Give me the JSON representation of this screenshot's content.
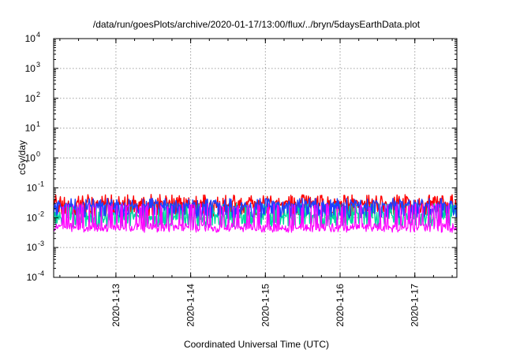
{
  "chart_data": {
    "type": "line",
    "title": "/data/run/goesPlots/archive/2020-01-17/13:00/flux/../bryn/5daysEarthData.plot",
    "xlabel": "Coordinated Universal Time (UTC)",
    "ylabel": "cGy/day",
    "y_scale": "log",
    "ylim": [
      0.0001,
      10000
    ],
    "y_ticks": [
      {
        "value": 0.0001,
        "base": "10",
        "exp": "-4"
      },
      {
        "value": 0.001,
        "base": "10",
        "exp": "-3"
      },
      {
        "value": 0.01,
        "base": "10",
        "exp": "-2"
      },
      {
        "value": 0.1,
        "base": "10",
        "exp": "-1"
      },
      {
        "value": 1,
        "base": "10",
        "exp": "0"
      },
      {
        "value": 10,
        "base": "10",
        "exp": "1"
      },
      {
        "value": 100,
        "base": "10",
        "exp": "2"
      },
      {
        "value": 1000,
        "base": "10",
        "exp": "3"
      },
      {
        "value": 10000,
        "base": "10",
        "exp": "4"
      }
    ],
    "xlim": [
      "2020-01-12T04:00",
      "2020-01-17T13:30"
    ],
    "x_ticks": [
      {
        "value": "2020-01-13T00:00",
        "label": "2020-1-13"
      },
      {
        "value": "2020-01-14T00:00",
        "label": "2020-1-14"
      },
      {
        "value": "2020-01-15T00:00",
        "label": "2020-1-15"
      },
      {
        "value": "2020-01-16T00:00",
        "label": "2020-1-16"
      },
      {
        "value": "2020-01-17T00:00",
        "label": "2020-1-17"
      }
    ],
    "grid": true,
    "legend": "none",
    "series": [
      {
        "color": "#ff0000",
        "baseline": 0.03,
        "low": 0.014,
        "spike": 0.06
      },
      {
        "color": "#00d8a0",
        "baseline": 0.012,
        "low": 0.006,
        "spike": 0.03
      },
      {
        "color": "#1e40ff",
        "baseline": 0.025,
        "low": 0.012,
        "spike": 0.045
      },
      {
        "color": "#ff00ff",
        "baseline": 0.005,
        "low": 0.004,
        "spike": 0.03
      }
    ]
  }
}
